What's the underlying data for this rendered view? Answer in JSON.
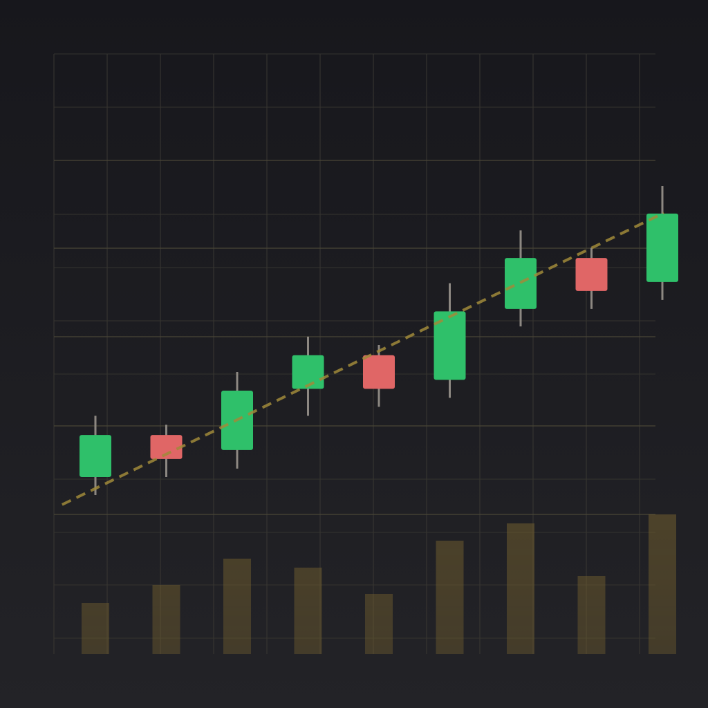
{
  "chart_data": {
    "type": "candlestick",
    "categories": [
      null,
      null,
      null,
      null,
      null,
      null,
      null,
      null,
      null
    ],
    "open": [
      29.5,
      36.5,
      34.0,
      44.2,
      49.8,
      45.7,
      57.5,
      66.0,
      62.0
    ],
    "close": [
      36.5,
      32.5,
      43.9,
      49.8,
      44.2,
      57.1,
      66.0,
      60.5,
      73.4
    ],
    "high": [
      39.7,
      38.2,
      47.0,
      52.9,
      51.5,
      61.8,
      70.6,
      67.7,
      78.0
    ],
    "low": [
      26.5,
      29.5,
      30.9,
      39.7,
      41.2,
      42.7,
      54.6,
      57.5,
      59.0
    ],
    "up_color": "#2fc06a",
    "down_color": "#e06666",
    "wick_color": "#8d8882",
    "ylim": [
      0,
      100
    ],
    "volume": {
      "values": [
        74,
        100,
        138,
        125,
        87,
        164,
        189,
        113,
        202
      ],
      "color": "#7a6530",
      "axis": "y2"
    },
    "y2lim": [
      0,
      868
    ],
    "trend": {
      "x": [
        -0.47,
        8.02
      ],
      "values": [
        24.9,
        73.5
      ],
      "color": "#a08a3a"
    },
    "grid": true
  }
}
